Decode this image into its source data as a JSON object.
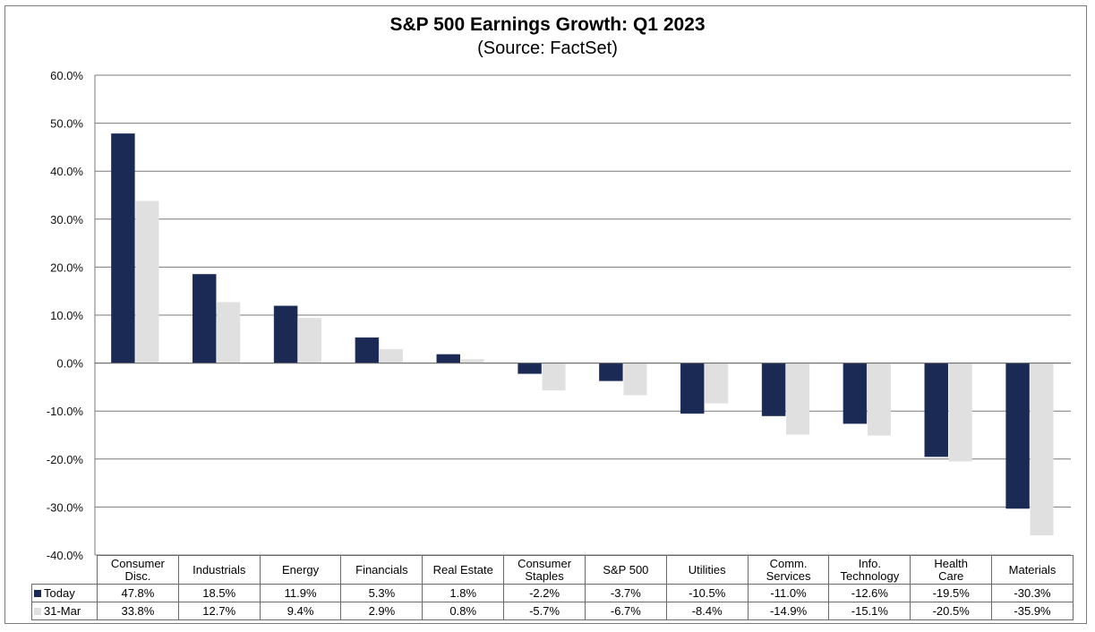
{
  "chart_data": {
    "type": "bar",
    "title": "S&P 500 Earnings Growth: Q1 2023",
    "subtitle": "(Source: FactSet)",
    "xlabel": "",
    "ylabel": "",
    "ylim": [
      -40,
      60
    ],
    "yticks": [
      60,
      50,
      40,
      30,
      20,
      10,
      0,
      -10,
      -20,
      -30,
      -40
    ],
    "ytick_labels": [
      "60.0%",
      "50.0%",
      "40.0%",
      "30.0%",
      "20.0%",
      "10.0%",
      "0.0%",
      "-10.0%",
      "-20.0%",
      "-30.0%",
      "-40.0%"
    ],
    "grid": true,
    "legend_placement": "data-table-left",
    "categories": [
      "Consumer Disc.",
      "Industrials",
      "Energy",
      "Financials",
      "Real Estate",
      "Consumer Staples",
      "S&P 500",
      "Utilities",
      "Comm. Services",
      "Info. Technology",
      "Health Care",
      "Materials"
    ],
    "category_lines": [
      [
        "Consumer",
        "Disc."
      ],
      [
        "Industrials"
      ],
      [
        "Energy"
      ],
      [
        "Financials"
      ],
      [
        "Real Estate"
      ],
      [
        "Consumer",
        "Staples"
      ],
      [
        "S&P 500"
      ],
      [
        "Utilities"
      ],
      [
        "Comm.",
        "Services"
      ],
      [
        "Info.",
        "Technology"
      ],
      [
        "Health",
        "Care"
      ],
      [
        "Materials"
      ]
    ],
    "series": [
      {
        "name": "Today",
        "color": "#1a2a55",
        "values": [
          47.8,
          18.5,
          11.9,
          5.3,
          1.8,
          -2.2,
          -3.7,
          -10.5,
          -11.0,
          -12.6,
          -19.5,
          -30.3
        ],
        "labels": [
          "47.8%",
          "18.5%",
          "11.9%",
          "5.3%",
          "1.8%",
          "-2.2%",
          "-3.7%",
          "-10.5%",
          "-11.0%",
          "-12.6%",
          "-19.5%",
          "-30.3%"
        ]
      },
      {
        "name": "31-Mar",
        "color": "#e0e0e0",
        "values": [
          33.8,
          12.7,
          9.4,
          2.9,
          0.8,
          -5.7,
          -6.7,
          -8.4,
          -14.9,
          -15.1,
          -20.5,
          -35.9
        ],
        "labels": [
          "33.8%",
          "12.7%",
          "9.4%",
          "2.9%",
          "0.8%",
          "-5.7%",
          "-6.7%",
          "-8.4%",
          "-14.9%",
          "-15.1%",
          "-20.5%",
          "-35.9%"
        ]
      }
    ]
  }
}
